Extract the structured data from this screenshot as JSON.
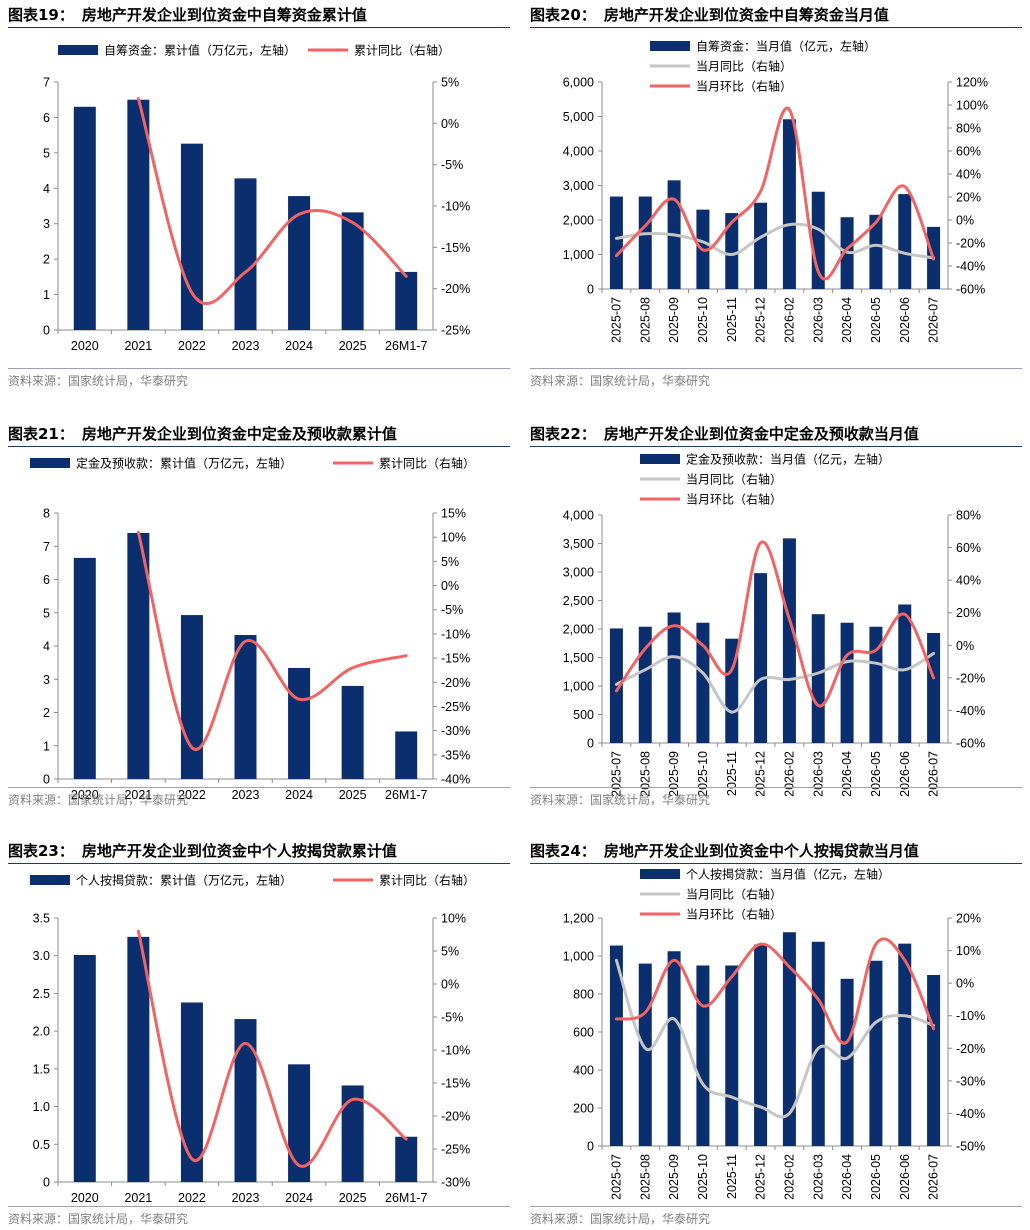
{
  "colors": {
    "bar": "#0a2e6e",
    "ratio": "#f26464",
    "yoy": "#c6c6c6",
    "rule": "#1f3864"
  },
  "panels": [
    {
      "number": "图表19：",
      "title": "房地产开发企业到位资金中自筹资金累计值",
      "source": "资料来源：国家统计局，华泰研究",
      "chart_data": {
        "type": "bar",
        "categories": [
          "2020",
          "2021",
          "2022",
          "2023",
          "2024",
          "2025",
          "26M1-7"
        ],
        "series": [
          {
            "name": "自筹资金：累计值（万亿元，左轴）",
            "kind": "bar",
            "axis": "left",
            "color": "#0a2e6e",
            "values": [
              6.3,
              6.5,
              5.26,
              4.28,
              3.78,
              3.32,
              1.64
            ]
          },
          {
            "name": "累计同比（右轴）",
            "kind": "line",
            "axis": "right",
            "color": "#f26464",
            "values": [
              null,
              3.0,
              -20.5,
              -18.0,
              -11.0,
              -12.0,
              -18.5
            ]
          }
        ],
        "yleft": {
          "min": 0,
          "max": 7,
          "ticks": [
            "0",
            "1",
            "2",
            "3",
            "4",
            "5",
            "6",
            "7"
          ]
        },
        "yright": {
          "min": -25,
          "max": 5,
          "ticks": [
            "-25%",
            "-20%",
            "-15%",
            "-10%",
            "-5%",
            "0%",
            "5%"
          ]
        }
      }
    },
    {
      "number": "图表20：",
      "title": "房地产开发企业到位资金中自筹资金当月值",
      "source": "资料来源：国家统计局，华泰研究",
      "chart_data": {
        "type": "bar",
        "categories": [
          "2025-07",
          "2025-08",
          "2025-09",
          "2025-10",
          "2025-11",
          "2025-12",
          "2026-02",
          "2026-03",
          "2026-04",
          "2026-05",
          "2026-06",
          "2026-07"
        ],
        "series": [
          {
            "name": "自筹资金：当月值（亿元，左轴）",
            "kind": "bar",
            "axis": "left",
            "color": "#0a2e6e",
            "values": [
              2680,
              2680,
              3150,
              2300,
              2200,
              2500,
              4920,
              2820,
              2080,
              2150,
              2750,
              1800
            ]
          },
          {
            "name": "当月同比（右轴）",
            "kind": "line",
            "axis": "right",
            "color": "#c6c6c6",
            "values": [
              -16,
              -12,
              -13,
              -19,
              -30,
              -15,
              -4,
              -8,
              -28,
              -22,
              -29,
              -33
            ]
          },
          {
            "name": "当月环比（右轴）",
            "kind": "line",
            "axis": "right",
            "color": "#f26464",
            "values": [
              -31,
              -5,
              18,
              -26,
              -2,
              25,
              96,
              -45,
              -25,
              -2,
              29,
              -34
            ]
          }
        ],
        "yleft": {
          "min": 0,
          "max": 6000,
          "ticks": [
            "0",
            "1,000",
            "2,000",
            "3,000",
            "4,000",
            "5,000",
            "6,000"
          ]
        },
        "yright": {
          "min": -60,
          "max": 120,
          "ticks": [
            "-60%",
            "-40%",
            "-20%",
            "0%",
            "20%",
            "40%",
            "60%",
            "80%",
            "100%",
            "120%"
          ]
        }
      }
    },
    {
      "number": "图表21：",
      "title": "房地产开发企业到位资金中定金及预收款累计值",
      "source": "资料来源：国家统计局，华泰研究",
      "chart_data": {
        "type": "bar",
        "categories": [
          "2020",
          "2021",
          "2022",
          "2023",
          "2024",
          "2025",
          "26M1-7"
        ],
        "series": [
          {
            "name": "定金及预收款：累计值（万亿元，左轴）",
            "kind": "bar",
            "axis": "left",
            "color": "#0a2e6e",
            "values": [
              6.65,
              7.4,
              4.93,
              4.33,
              3.34,
              2.8,
              1.43
            ]
          },
          {
            "name": "累计同比（右轴）",
            "kind": "line",
            "axis": "right",
            "color": "#f26464",
            "values": [
              null,
              11.0,
              -33.5,
              -11.5,
              -23.5,
              -17.0,
              -14.5
            ]
          }
        ],
        "yleft": {
          "min": 0,
          "max": 8,
          "ticks": [
            "0",
            "1",
            "2",
            "3",
            "4",
            "5",
            "6",
            "7",
            "8"
          ]
        },
        "yright": {
          "min": -40,
          "max": 15,
          "ticks": [
            "-40%",
            "-35%",
            "-30%",
            "-25%",
            "-20%",
            "-15%",
            "-10%",
            "-5%",
            "0%",
            "5%",
            "10%",
            "15%"
          ]
        }
      }
    },
    {
      "number": "图表22：",
      "title": "房地产开发企业到位资金中定金及预收款当月值",
      "source": "资料来源：国家统计局，华泰研究",
      "chart_data": {
        "type": "bar",
        "categories": [
          "2025-07",
          "2025-08",
          "2025-09",
          "2025-10",
          "2025-11",
          "2025-12",
          "2026-02",
          "2026-03",
          "2026-04",
          "2026-05",
          "2026-06",
          "2026-07"
        ],
        "series": [
          {
            "name": "定金及预收款：当月值（亿元，左轴）",
            "kind": "bar",
            "axis": "left",
            "color": "#0a2e6e",
            "values": [
              2010,
              2040,
              2290,
              2110,
              1830,
              2980,
              3590,
              2260,
              2110,
              2040,
              2430,
              1930
            ]
          },
          {
            "name": "当月同比（右轴）",
            "kind": "line",
            "axis": "right",
            "color": "#c6c6c6",
            "values": [
              -24,
              -15,
              -7,
              -17,
              -41,
              -21,
              -21,
              -17,
              -10,
              -11,
              -15,
              -5
            ]
          },
          {
            "name": "当月环比（右轴）",
            "kind": "line",
            "axis": "right",
            "color": "#f26464",
            "values": [
              -28,
              -2,
              12,
              0,
              -15,
              63,
              16,
              -37,
              -6,
              -3,
              19,
              -20
            ]
          }
        ],
        "yleft": {
          "min": 0,
          "max": 4000,
          "ticks": [
            "0",
            "500",
            "1,000",
            "1,500",
            "2,000",
            "2,500",
            "3,000",
            "3,500",
            "4,000"
          ]
        },
        "yright": {
          "min": -60,
          "max": 80,
          "ticks": [
            "-60%",
            "-40%",
            "-20%",
            "0%",
            "20%",
            "40%",
            "60%",
            "80%"
          ]
        }
      }
    },
    {
      "number": "图表23：",
      "title": "房地产开发企业到位资金中个人按揭贷款累计值",
      "source": "资料来源：国家统计局，华泰研究",
      "chart_data": {
        "type": "bar",
        "categories": [
          "2020",
          "2021",
          "2022",
          "2023",
          "2024",
          "2025",
          "26M1-7"
        ],
        "series": [
          {
            "name": "个人按揭贷款：累计值（万亿元，左轴）",
            "kind": "bar",
            "axis": "left",
            "color": "#0a2e6e",
            "values": [
              3.01,
              3.25,
              2.38,
              2.16,
              1.56,
              1.28,
              0.6
            ]
          },
          {
            "name": "累计同比（右轴）",
            "kind": "line",
            "axis": "right",
            "color": "#f26464",
            "values": [
              null,
              8.0,
              -26.5,
              -9.0,
              -27.5,
              -17.5,
              -23.5
            ]
          }
        ],
        "yleft": {
          "min": 0,
          "max": 3.5,
          "ticks": [
            "0",
            "0.5",
            "1.0",
            "1.5",
            "2.0",
            "2.5",
            "3.0",
            "3.5"
          ]
        },
        "yright": {
          "min": -30,
          "max": 10,
          "ticks": [
            "-30%",
            "-25%",
            "-20%",
            "-15%",
            "-10%",
            "-5%",
            "0%",
            "5%",
            "10%"
          ]
        }
      }
    },
    {
      "number": "图表24：",
      "title": "房地产开发企业到位资金中个人按揭贷款当月值",
      "source": "资料来源：国家统计局，华泰研究",
      "chart_data": {
        "type": "bar",
        "categories": [
          "2025-07",
          "2025-08",
          "2025-09",
          "2025-10",
          "2025-11",
          "2025-12",
          "2026-02",
          "2026-03",
          "2026-04",
          "2026-05",
          "2026-06",
          "2026-07"
        ],
        "series": [
          {
            "name": "个人按揭贷款：当月值（亿元，左轴）",
            "kind": "bar",
            "axis": "left",
            "color": "#0a2e6e",
            "values": [
              1055,
              960,
              1025,
              950,
              950,
              1060,
              1125,
              1075,
              880,
              975,
              1065,
              900
            ]
          },
          {
            "name": "当月同比（右轴）",
            "kind": "line",
            "axis": "right",
            "color": "#c6c6c6",
            "values": [
              7,
              -20,
              -11,
              -31,
              -35,
              -38,
              -40,
              -20,
              -23,
              -12,
              -10,
              -13
            ]
          },
          {
            "name": "当月环比（右轴）",
            "kind": "line",
            "axis": "right",
            "color": "#f26464",
            "values": [
              -11,
              -9,
              7,
              -7,
              2,
              12,
              5,
              -5,
              -18,
              12,
              7,
              -14
            ]
          }
        ],
        "yleft": {
          "min": 0,
          "max": 1200,
          "ticks": [
            "0",
            "200",
            "400",
            "600",
            "800",
            "1,000",
            "1,200"
          ]
        },
        "yright": {
          "min": -50,
          "max": 20,
          "ticks": [
            "-50%",
            "-40%",
            "-30%",
            "-20%",
            "-10%",
            "0%",
            "10%",
            "20%"
          ]
        }
      }
    }
  ]
}
